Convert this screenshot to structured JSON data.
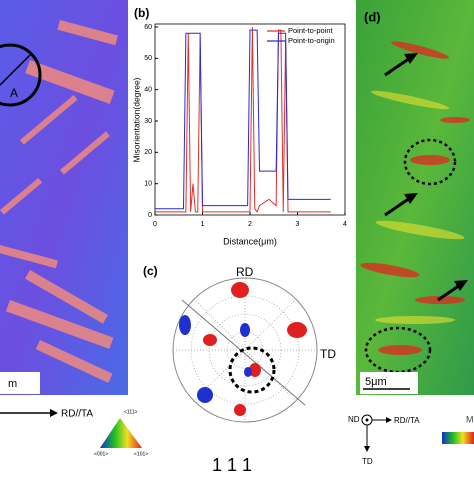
{
  "chart_data": {
    "type": "line",
    "panel_label": "(b)",
    "x_label": "Distance(μm)",
    "y_label": "Misorientation(degree)",
    "x": [
      0,
      0.3,
      0.6,
      0.65,
      0.7,
      0.75,
      0.8,
      0.85,
      0.9,
      0.95,
      1.0,
      1.5,
      1.95,
      2.0,
      2.05,
      2.1,
      2.15,
      2.2,
      2.4,
      2.55,
      2.6,
      2.65,
      2.7,
      2.75,
      2.8,
      3.2,
      3.7
    ],
    "series": [
      {
        "name": "Point-to-point",
        "color": "#e0302a",
        "values": [
          1,
          1,
          1,
          1,
          58,
          1,
          10,
          1,
          1,
          57,
          1,
          1,
          1,
          1,
          60,
          2,
          1,
          3,
          5,
          3,
          59,
          59,
          1,
          56,
          1,
          1,
          1
        ]
      },
      {
        "name": "Point-to-origin",
        "color": "#2a2ad0",
        "values": [
          2,
          2,
          2,
          58,
          58,
          58,
          58,
          58,
          58,
          58,
          3,
          3,
          3,
          59,
          59,
          59,
          59,
          14,
          14,
          14,
          58,
          58,
          58,
          58,
          5,
          5,
          5
        ]
      }
    ],
    "xlim": [
      0,
      4
    ],
    "xticks": [
      0,
      1,
      2,
      3,
      4
    ],
    "ylim": [
      0,
      60
    ],
    "yticks": [
      0,
      10,
      20,
      30,
      40,
      50,
      60
    ],
    "legend": "upper right"
  },
  "panel_a": {
    "circle_label": "A",
    "scale_bar": "m",
    "direction": "RD//TA",
    "triangle": {
      "top": "<111>",
      "left": "<001>",
      "right": "<101>"
    }
  },
  "panel_c": {
    "label": "(c)",
    "rd": "RD",
    "td": "TD",
    "pole": "1 1 1"
  },
  "panel_d": {
    "label": "(d)",
    "scale_bar": "5μm",
    "nd": "ND",
    "direction": "RD//TA",
    "td": "TD",
    "legend_cut": "M"
  }
}
